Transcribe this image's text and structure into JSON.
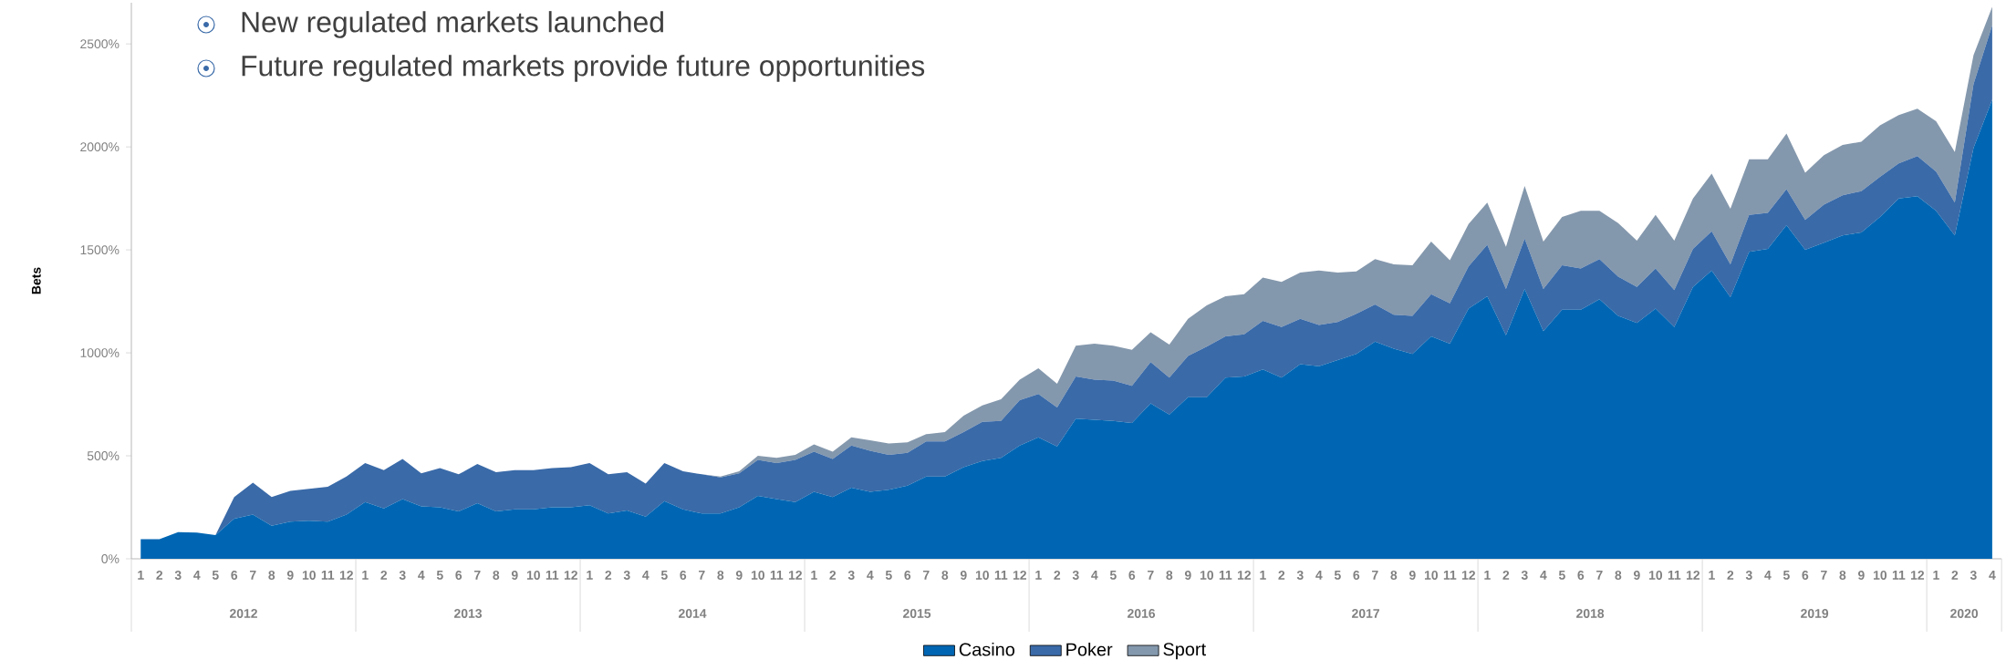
{
  "chart_data": {
    "type": "area",
    "stacked": true,
    "ylabel": "Bets",
    "legend": "bottom",
    "annotations": [
      "New regulated markets launched",
      "Future regulated markets provide future opportunities",
      "2012",
      "2013",
      "2014",
      "2015",
      "2016",
      "2017",
      "2018",
      "2019",
      "2020"
    ],
    "categories": [
      "1",
      "2",
      "3",
      "4",
      "5",
      "6",
      "7",
      "8",
      "9",
      "10",
      "11",
      "12",
      "1",
      "2",
      "3",
      "4",
      "5",
      "6",
      "7",
      "8",
      "9",
      "10",
      "11",
      "12",
      "1",
      "2",
      "3",
      "4",
      "5",
      "6",
      "7",
      "8",
      "9",
      "10",
      "11",
      "12",
      "1",
      "2",
      "3",
      "4",
      "5",
      "6",
      "7",
      "8",
      "9",
      "10",
      "11",
      "12",
      "1",
      "2",
      "3",
      "4",
      "5",
      "6",
      "7",
      "8",
      "9",
      "10",
      "11",
      "12",
      "1",
      "2",
      "3",
      "4",
      "5",
      "6",
      "7",
      "8",
      "9",
      "10",
      "11",
      "12",
      "1",
      "2",
      "3",
      "4",
      "5",
      "6",
      "7",
      "8",
      "9",
      "10",
      "11",
      "12",
      "1",
      "2",
      "3",
      "4",
      "5",
      "6",
      "7",
      "8",
      "9",
      "10",
      "11",
      "12",
      "1",
      "2",
      "3",
      "4"
    ],
    "ylim": [
      0,
      2700
    ],
    "yticks": [
      {
        "value": 0,
        "label": "0%"
      },
      {
        "value": 500,
        "label": "500%"
      },
      {
        "value": 1000,
        "label": "1000%"
      },
      {
        "value": 1500,
        "label": "1500%"
      },
      {
        "value": 2000,
        "label": "2000%"
      },
      {
        "value": 2500,
        "label": "2500%"
      }
    ],
    "series": [
      {
        "name": "Casino",
        "color": "#0066b3",
        "values": [
          95,
          95,
          130,
          127,
          115,
          195,
          215,
          160,
          180,
          185,
          180,
          215,
          275,
          245,
          290,
          255,
          250,
          230,
          270,
          230,
          240,
          240,
          250,
          250,
          260,
          220,
          235,
          205,
          280,
          240,
          220,
          220,
          250,
          305,
          290,
          275,
          325,
          300,
          345,
          325,
          335,
          355,
          400,
          400,
          445,
          475,
          490,
          550,
          590,
          545,
          680,
          675,
          670,
          660,
          755,
          700,
          785,
          785,
          880,
          885,
          920,
          880,
          945,
          935,
          965,
          995,
          1055,
          1020,
          995,
          1080,
          1045,
          1215,
          1275,
          1085,
          1310,
          1105,
          1210,
          1210,
          1260,
          1180,
          1145,
          1215,
          1125,
          1320,
          1400,
          1270,
          1490,
          1505,
          1620,
          1500,
          1535,
          1570,
          1585,
          1660,
          1750,
          1760,
          1690,
          1570,
          1995,
          2230
        ]
      },
      {
        "name": "Poker",
        "color": "#3a6aa8",
        "values": [
          0,
          0,
          0,
          0,
          0,
          105,
          155,
          140,
          150,
          155,
          170,
          185,
          190,
          185,
          195,
          160,
          190,
          180,
          190,
          190,
          190,
          190,
          190,
          195,
          205,
          190,
          185,
          160,
          185,
          185,
          190,
          175,
          165,
          175,
          175,
          205,
          195,
          185,
          205,
          200,
          170,
          160,
          170,
          170,
          170,
          190,
          180,
          220,
          210,
          190,
          205,
          195,
          195,
          180,
          200,
          180,
          200,
          245,
          200,
          205,
          235,
          245,
          220,
          200,
          185,
          195,
          180,
          165,
          185,
          205,
          195,
          205,
          250,
          225,
          245,
          205,
          215,
          200,
          195,
          190,
          175,
          195,
          180,
          185,
          190,
          160,
          180,
          175,
          175,
          145,
          185,
          195,
          200,
          195,
          170,
          195,
          190,
          160,
          310,
          360
        ]
      },
      {
        "name": "Sport",
        "color": "#8498ad",
        "values": [
          0,
          0,
          0,
          0,
          0,
          0,
          0,
          0,
          0,
          0,
          0,
          0,
          0,
          0,
          0,
          0,
          0,
          0,
          0,
          0,
          0,
          0,
          0,
          0,
          0,
          0,
          0,
          0,
          0,
          0,
          0,
          5,
          10,
          20,
          25,
          25,
          35,
          35,
          40,
          50,
          55,
          50,
          35,
          45,
          80,
          80,
          105,
          100,
          125,
          115,
          150,
          175,
          170,
          175,
          145,
          160,
          180,
          200,
          195,
          195,
          210,
          220,
          225,
          265,
          240,
          205,
          220,
          245,
          245,
          255,
          210,
          205,
          205,
          205,
          255,
          230,
          235,
          280,
          235,
          260,
          225,
          260,
          240,
          245,
          280,
          270,
          270,
          260,
          270,
          230,
          240,
          245,
          240,
          250,
          235,
          230,
          245,
          245,
          140,
          90
        ]
      }
    ]
  }
}
